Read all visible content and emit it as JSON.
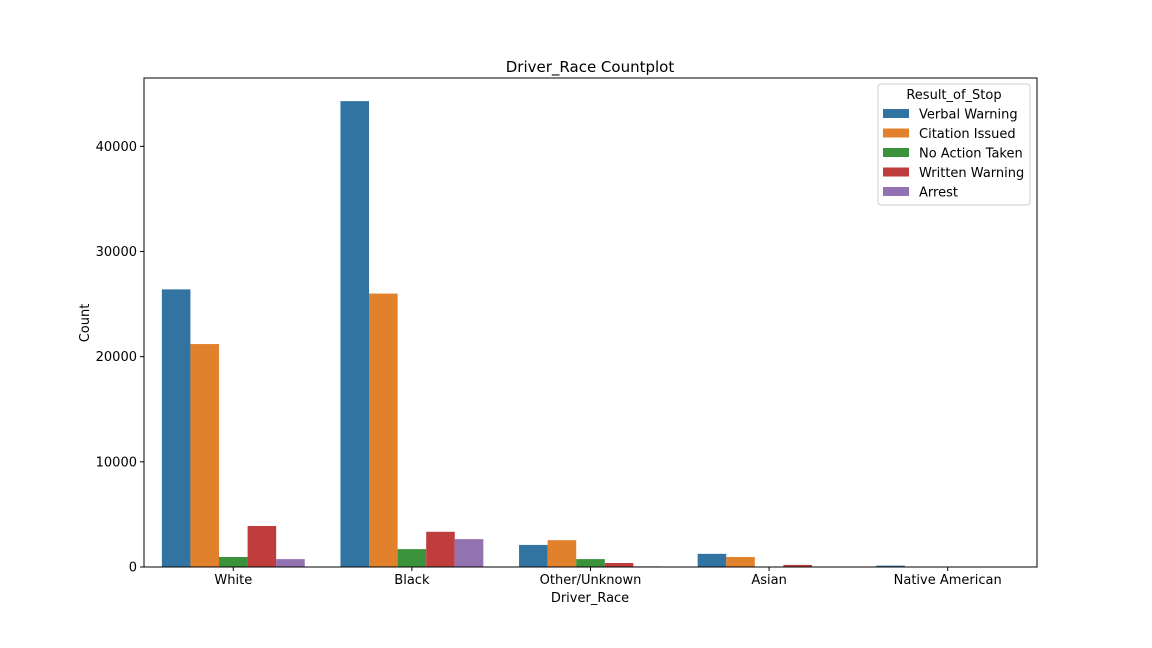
{
  "chart_data": {
    "type": "bar",
    "title": "Driver_Race Countplot",
    "xlabel": "Driver_Race",
    "ylabel": "Count",
    "categories": [
      "White",
      "Black",
      "Other/Unknown",
      "Asian",
      "Native American"
    ],
    "ylim": [
      0,
      46500
    ],
    "yticks": [
      0,
      10000,
      20000,
      30000,
      40000
    ],
    "legend": {
      "title": "Result_of_Stop",
      "placement": "top-right"
    },
    "grid": false,
    "series": [
      {
        "name": "Verbal Warning",
        "color": "#3274a1",
        "values": [
          26400,
          44300,
          2100,
          1250,
          130
        ]
      },
      {
        "name": "Citation Issued",
        "color": "#e1812c",
        "values": [
          21200,
          26000,
          2550,
          950,
          30
        ]
      },
      {
        "name": "No Action Taken",
        "color": "#3a923a",
        "values": [
          950,
          1700,
          750,
          40,
          10
        ]
      },
      {
        "name": "Written Warning",
        "color": "#c03d3e",
        "values": [
          3900,
          3350,
          380,
          200,
          10
        ]
      },
      {
        "name": "Arrest",
        "color": "#9372b2",
        "values": [
          750,
          2650,
          60,
          20,
          5
        ]
      }
    ]
  }
}
